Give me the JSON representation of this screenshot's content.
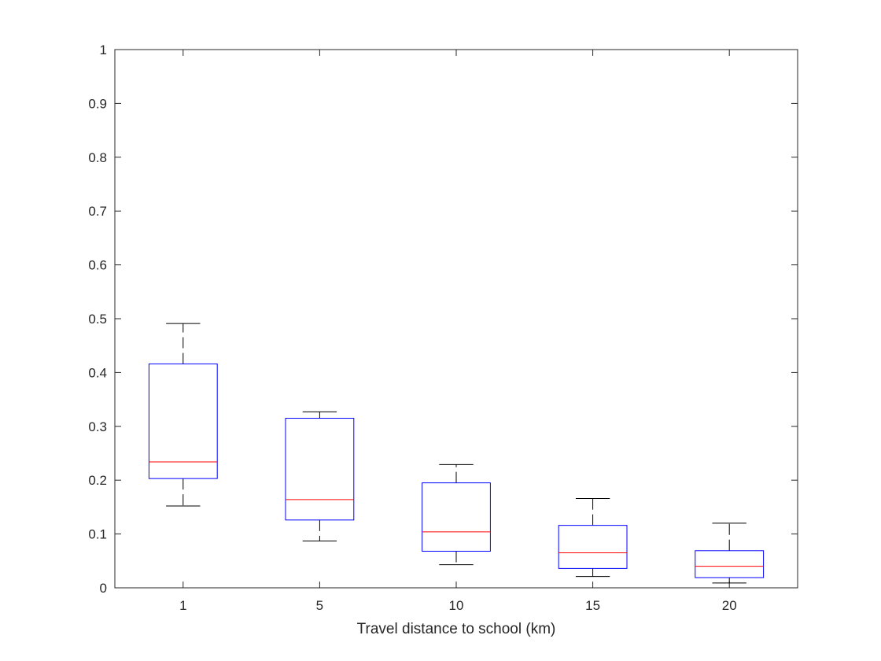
{
  "chart_data": {
    "type": "boxplot",
    "title": "",
    "xlabel": "Travel distance to school (km)",
    "ylabel": "",
    "categories": [
      "1",
      "5",
      "10",
      "15",
      "20"
    ],
    "ylim": [
      0,
      1
    ],
    "yticks": [
      "0",
      "0.1",
      "0.2",
      "0.3",
      "0.4",
      "0.5",
      "0.6",
      "0.7",
      "0.8",
      "0.9",
      "1"
    ],
    "grid": false,
    "boxes": [
      {
        "category": "1",
        "min": 0.152,
        "q1": 0.203,
        "median": 0.234,
        "q3": 0.416,
        "max": 0.491
      },
      {
        "category": "5",
        "min": 0.087,
        "q1": 0.126,
        "median": 0.164,
        "q3": 0.315,
        "max": 0.327
      },
      {
        "category": "10",
        "min": 0.043,
        "q1": 0.068,
        "median": 0.104,
        "q3": 0.195,
        "max": 0.229
      },
      {
        "category": "15",
        "min": 0.021,
        "q1": 0.036,
        "median": 0.065,
        "q3": 0.116,
        "max": 0.166
      },
      {
        "category": "20",
        "min": 0.009,
        "q1": 0.019,
        "median": 0.04,
        "q3": 0.069,
        "max": 0.12
      }
    ],
    "colors": {
      "box": "#0000ff",
      "median": "#ff0000",
      "whisker": "#000000",
      "axes": "#262626"
    }
  }
}
